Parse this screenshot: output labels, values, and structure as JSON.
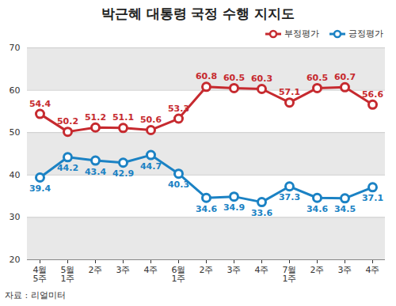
{
  "chart_data": {
    "type": "line",
    "title": "박근혜 대통령 국정 수행 지지도",
    "categories": [
      "4월\n5주",
      "5월\n1주",
      "2주",
      "3주",
      "4주",
      "6월\n1주",
      "2주",
      "3주",
      "4주",
      "7월\n1주",
      "2주",
      "3주",
      "4주"
    ],
    "series": [
      {
        "name": "부정평가",
        "color": "#c62a2f",
        "marker": "circle",
        "values": [
          54.4,
          50.2,
          51.2,
          51.1,
          50.6,
          53.3,
          60.8,
          60.5,
          60.3,
          57.1,
          60.5,
          60.7,
          56.6
        ]
      },
      {
        "name": "긍정평가",
        "color": "#1b82c4",
        "marker": "circle",
        "values": [
          39.4,
          44.2,
          43.4,
          42.9,
          44.7,
          40.3,
          34.6,
          34.9,
          33.6,
          37.3,
          34.6,
          34.5,
          37.1
        ]
      }
    ],
    "ylim": [
      20,
      70
    ],
    "yticks": [
      20,
      30,
      40,
      50,
      60,
      70
    ],
    "grid": true,
    "legend": "top-right",
    "data_labels": true,
    "caption": "자료 : 리얼미터"
  }
}
